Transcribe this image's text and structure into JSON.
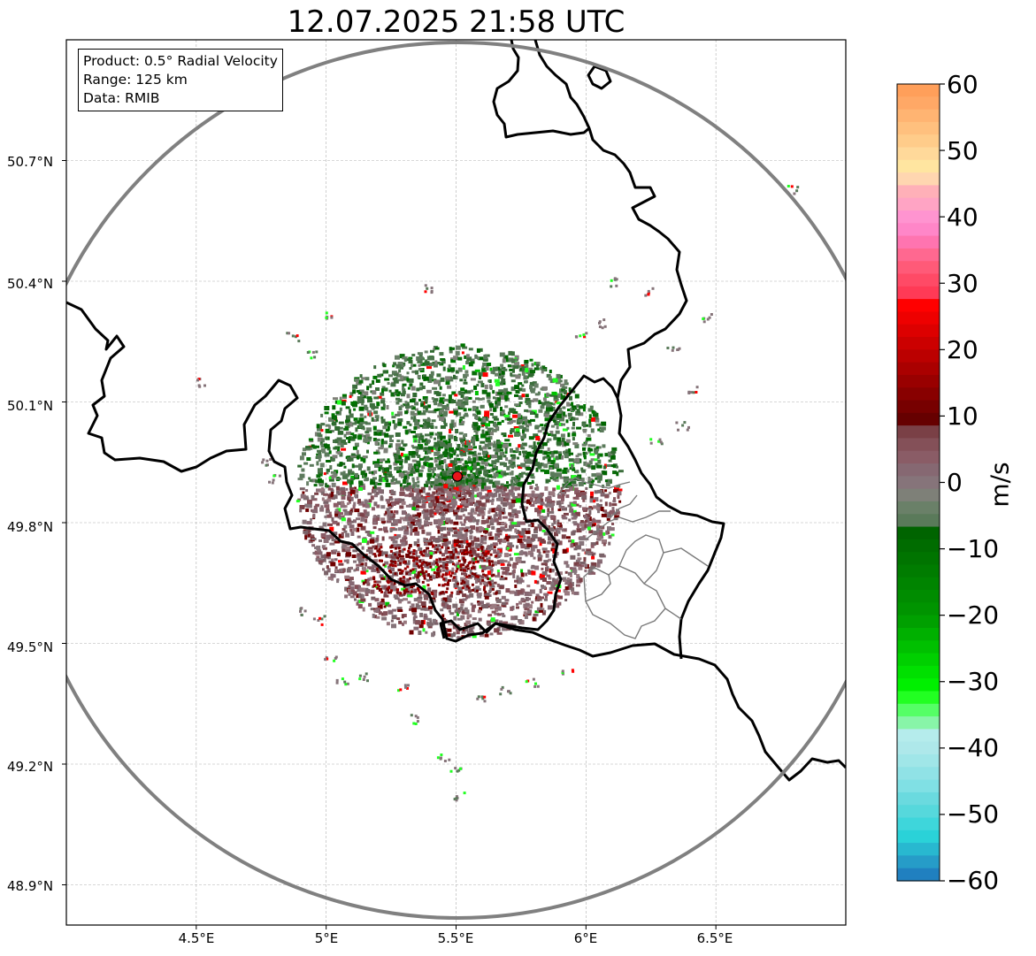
{
  "title": "12.07.2025 21:58 UTC",
  "info": {
    "product": "Product: 0.5° Radial Velocity",
    "range": "Range: 125 km",
    "source": "Data: RMIB"
  },
  "map": {
    "lon_range": [
      4.0,
      7.0
    ],
    "lat_range": [
      48.8,
      51.0
    ],
    "x_ticks": [
      "4.5°E",
      "5°E",
      "5.5°E",
      "6°E",
      "6.5°E"
    ],
    "y_ticks": [
      "50.7°N",
      "50.4°N",
      "50.1°N",
      "49.8°N",
      "49.5°N",
      "49.2°N",
      "48.9°N"
    ],
    "radar_site": {
      "lon": 5.505,
      "lat": 49.915,
      "color": "#e8151b"
    },
    "range_ring_color": "#808080",
    "gridlines": true
  },
  "colorbar": {
    "label": "m/s",
    "min": -60,
    "max": 60,
    "ticks": [
      "60",
      "50",
      "40",
      "30",
      "20",
      "10",
      "0",
      "−10",
      "−20",
      "−30",
      "−40",
      "−50",
      "−60"
    ],
    "colors_top_to_bottom": [
      "#ff9f5a",
      "#ffa866",
      "#ffb472",
      "#ffc07e",
      "#ffcc8a",
      "#ffd99a",
      "#ffe5a0",
      "#ffd6b0",
      "#ffb0b8",
      "#ffa4c4",
      "#ff94d0",
      "#ff86c8",
      "#ff74b0",
      "#ff6890",
      "#ff5a78",
      "#ff4a66",
      "#ff3a56",
      "#ff0000",
      "#ee0000",
      "#dd0000",
      "#cc0000",
      "#bb0000",
      "#aa0000",
      "#990000",
      "#880000",
      "#770000",
      "#660000",
      "#7a4046",
      "#845058",
      "#8a5c66",
      "#866872",
      "#86747a",
      "#7e8078",
      "#6a8068",
      "#5a7a5a",
      "#006400",
      "#006c00",
      "#007400",
      "#007c00",
      "#008400",
      "#008c00",
      "#009400",
      "#00a000",
      "#00b000",
      "#00c000",
      "#00d000",
      "#00e000",
      "#00f000",
      "#22ff22",
      "#55ff66",
      "#88f5a8",
      "#b5ecec",
      "#aee8ea",
      "#a0e6e8",
      "#90e2e6",
      "#80e0e4",
      "#6adadf",
      "#56d8dc",
      "#3ed6db",
      "#2ad2d8",
      "#28b8d0",
      "#269cc8",
      "#2080c0"
    ]
  }
}
